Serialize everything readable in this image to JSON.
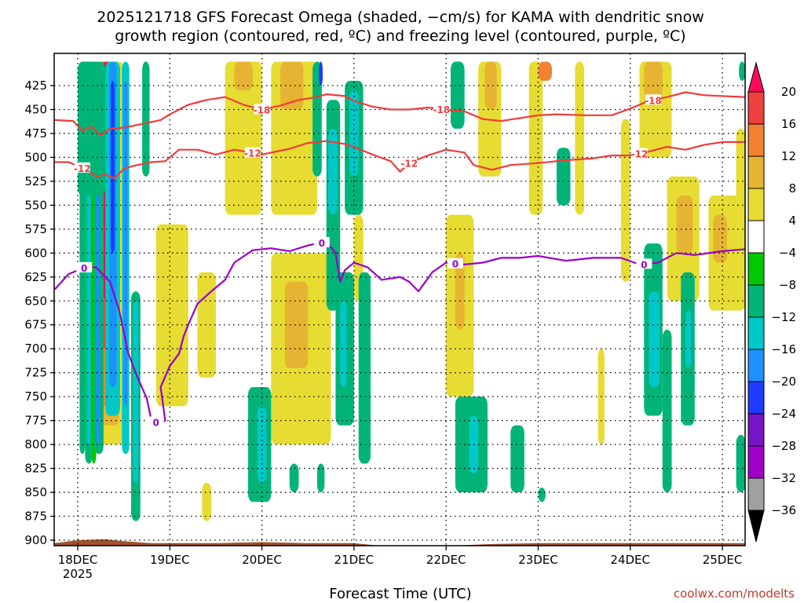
{
  "chart_data": {
    "type": "time-height contour",
    "title_line1": "2025121718 GFS Forecast Omega (shaded, −cm/s) for KAMA with dendritic snow",
    "title_line2": "growth region (contoured, red, ºC) and freezing level (contoured, purple, ºC)",
    "xlabel": "Forecast Time (UTC)",
    "x_ticks": [
      "18DEC",
      "19DEC",
      "20DEC",
      "21DEC",
      "22DEC",
      "23DEC",
      "24DEC",
      "25DEC"
    ],
    "x_year_label": "2025",
    "y_ticks": [
      425,
      450,
      475,
      500,
      525,
      550,
      575,
      600,
      625,
      650,
      675,
      700,
      725,
      750,
      775,
      800,
      825,
      850,
      875,
      900
    ],
    "y_range_hpa": [
      400,
      910
    ],
    "x_range_days": [
      17.75,
      25.25
    ],
    "colorbar_ticks": [
      "20",
      "16",
      "12",
      "8",
      "4",
      "−4",
      "−8",
      "−12",
      "−16",
      "−20",
      "−24",
      "−28",
      "−32",
      "−36"
    ],
    "colorbar_colors": [
      "#ff0a5a",
      "#f04040",
      "#f08232",
      "#e6b432",
      "#e6dc32",
      "#ffffff",
      "#00c800",
      "#00b478",
      "#00c8c8",
      "#1e90ff",
      "#1e3cff",
      "#7814c8",
      "#a000c8",
      "#a0a0a0",
      "#000000"
    ],
    "contour_colors": {
      "snow_growth": "#f03c3c",
      "freezing": "#9b00c8",
      "terrain": "#a0522d"
    },
    "isotherm_minus18": {
      "label": "-18",
      "label_days": [
        20.0,
        21.95,
        24.25
      ],
      "points": [
        [
          17.75,
          461
        ],
        [
          17.95,
          462
        ],
        [
          18.05,
          472
        ],
        [
          18.15,
          468
        ],
        [
          18.25,
          477
        ],
        [
          18.35,
          470
        ],
        [
          18.5,
          469
        ],
        [
          18.7,
          465
        ],
        [
          18.9,
          461
        ],
        [
          19.0,
          455
        ],
        [
          19.2,
          445
        ],
        [
          19.4,
          440
        ],
        [
          19.6,
          437
        ],
        [
          19.8,
          445
        ],
        [
          20.0,
          450
        ],
        [
          20.2,
          446
        ],
        [
          20.4,
          440
        ],
        [
          20.6,
          437
        ],
        [
          20.7,
          434
        ],
        [
          20.9,
          436
        ],
        [
          21.0,
          441
        ],
        [
          21.2,
          447
        ],
        [
          21.4,
          450
        ],
        [
          21.6,
          450
        ],
        [
          21.8,
          448
        ],
        [
          22.0,
          450
        ],
        [
          22.2,
          452
        ],
        [
          22.4,
          460
        ],
        [
          22.6,
          462
        ],
        [
          22.8,
          459
        ],
        [
          23.0,
          456
        ],
        [
          23.2,
          455
        ],
        [
          23.5,
          456
        ],
        [
          23.8,
          456
        ],
        [
          24.0,
          449
        ],
        [
          24.2,
          441
        ],
        [
          24.4,
          437
        ],
        [
          24.6,
          432
        ],
        [
          24.8,
          435
        ],
        [
          25.0,
          436
        ],
        [
          25.25,
          437
        ]
      ]
    },
    "isotherm_minus12": {
      "label": "-12",
      "label_days": [
        18.05,
        19.9,
        21.6,
        24.1
      ],
      "points": [
        [
          17.75,
          505
        ],
        [
          17.9,
          505
        ],
        [
          18.0,
          509
        ],
        [
          18.1,
          513
        ],
        [
          18.2,
          520
        ],
        [
          18.3,
          518
        ],
        [
          18.4,
          522
        ],
        [
          18.5,
          512
        ],
        [
          18.6,
          509
        ],
        [
          18.8,
          505
        ],
        [
          18.95,
          504
        ],
        [
          19.1,
          492
        ],
        [
          19.3,
          492
        ],
        [
          19.5,
          497
        ],
        [
          19.7,
          492
        ],
        [
          20.0,
          497
        ],
        [
          20.3,
          491
        ],
        [
          20.5,
          485
        ],
        [
          20.7,
          483
        ],
        [
          20.9,
          486
        ],
        [
          21.0,
          489
        ],
        [
          21.2,
          497
        ],
        [
          21.4,
          504
        ],
        [
          21.5,
          515
        ],
        [
          21.6,
          506
        ],
        [
          21.8,
          498
        ],
        [
          22.0,
          492
        ],
        [
          22.2,
          495
        ],
        [
          22.3,
          508
        ],
        [
          22.5,
          513
        ],
        [
          22.7,
          508
        ],
        [
          23.0,
          506
        ],
        [
          23.3,
          503
        ],
        [
          23.6,
          501
        ],
        [
          23.8,
          498
        ],
        [
          24.0,
          498
        ],
        [
          24.2,
          494
        ],
        [
          24.4,
          489
        ],
        [
          24.6,
          492
        ],
        [
          24.8,
          487
        ],
        [
          25.0,
          484
        ],
        [
          25.25,
          484
        ]
      ]
    },
    "isotherm_zero": {
      "label": "0",
      "label_days": [
        18.07,
        18.85,
        20.65,
        22.1,
        24.15
      ],
      "points": [
        [
          17.75,
          638
        ],
        [
          17.9,
          622
        ],
        [
          18.0,
          618
        ],
        [
          18.1,
          614
        ],
        [
          18.2,
          615
        ],
        [
          18.35,
          630
        ],
        [
          18.45,
          660
        ],
        [
          18.55,
          705
        ],
        [
          18.65,
          730
        ],
        [
          18.75,
          752
        ],
        [
          18.8,
          775
        ],
        [
          18.9,
          778
        ],
        [
          18.95,
          775
        ],
        [
          18.9,
          740
        ],
        [
          19.0,
          718
        ],
        [
          19.1,
          705
        ],
        [
          19.15,
          687
        ],
        [
          19.2,
          675
        ],
        [
          19.3,
          653
        ],
        [
          19.45,
          640
        ],
        [
          19.6,
          628
        ],
        [
          19.7,
          610
        ],
        [
          19.9,
          597
        ],
        [
          20.1,
          595
        ],
        [
          20.3,
          598
        ],
        [
          20.5,
          592
        ],
        [
          20.6,
          590
        ],
        [
          20.7,
          588
        ],
        [
          20.8,
          600
        ],
        [
          20.85,
          630
        ],
        [
          20.9,
          618
        ],
        [
          21.0,
          610
        ],
        [
          21.15,
          615
        ],
        [
          21.3,
          628
        ],
        [
          21.5,
          625
        ],
        [
          21.6,
          630
        ],
        [
          21.7,
          640
        ],
        [
          21.85,
          620
        ],
        [
          22.0,
          610
        ],
        [
          22.2,
          612
        ],
        [
          22.4,
          610
        ],
        [
          22.6,
          605
        ],
        [
          22.8,
          605
        ],
        [
          23.0,
          603
        ],
        [
          23.3,
          608
        ],
        [
          23.6,
          605
        ],
        [
          23.9,
          605
        ],
        [
          24.1,
          612
        ],
        [
          24.3,
          610
        ],
        [
          24.5,
          600
        ],
        [
          24.7,
          602
        ],
        [
          25.0,
          598
        ],
        [
          25.25,
          596
        ]
      ]
    },
    "omega_regions": [
      {
        "day_start": 18.02,
        "day_end": 18.08,
        "p_top": 400,
        "p_bot": 810,
        "value": -8
      },
      {
        "day_start": 18.08,
        "day_end": 18.16,
        "p_top": 400,
        "p_bot": 820,
        "value": -8
      },
      {
        "day_start": 18.1,
        "day_end": 18.14,
        "p_top": 400,
        "p_bot": 800,
        "value": -12
      },
      {
        "day_start": 18.15,
        "day_end": 18.2,
        "p_top": 400,
        "p_bot": 820,
        "value": -4
      },
      {
        "day_start": 18.18,
        "day_end": 18.28,
        "p_top": 400,
        "p_bot": 810,
        "value": -8
      },
      {
        "day_start": 18.2,
        "day_end": 18.24,
        "p_top": 400,
        "p_bot": 800,
        "value": -16
      },
      {
        "day_start": 18.3,
        "day_end": 18.46,
        "p_top": 400,
        "p_bot": 770,
        "value": -12
      },
      {
        "day_start": 18.34,
        "day_end": 18.42,
        "p_top": 400,
        "p_bot": 740,
        "value": -16
      },
      {
        "day_start": 18.36,
        "day_end": 18.4,
        "p_top": 420,
        "p_bot": 600,
        "value": -20
      },
      {
        "day_start": 18.48,
        "day_end": 18.56,
        "p_top": 400,
        "p_bot": 810,
        "value": -12
      },
      {
        "day_start": 18.5,
        "day_end": 18.54,
        "p_top": 420,
        "p_bot": 760,
        "value": -16
      },
      {
        "day_start": 18.58,
        "day_end": 18.68,
        "p_top": 640,
        "p_bot": 880,
        "value": -8
      },
      {
        "day_start": 18.6,
        "day_end": 18.66,
        "p_top": 650,
        "p_bot": 840,
        "value": -12
      },
      {
        "day_start": 18.0,
        "day_end": 18.3,
        "p_top": 400,
        "p_bot": 540,
        "value": -8
      },
      {
        "day_start": 18.7,
        "day_end": 18.78,
        "p_top": 400,
        "p_bot": 520,
        "value": -8
      },
      {
        "day_start": 20.55,
        "day_end": 20.65,
        "p_top": 400,
        "p_bot": 520,
        "value": -8
      },
      {
        "day_start": 20.62,
        "day_end": 20.66,
        "p_top": 400,
        "p_bot": 425,
        "value": -20
      },
      {
        "day_start": 20.7,
        "day_end": 20.85,
        "p_top": 440,
        "p_bot": 660,
        "value": -8
      },
      {
        "day_start": 20.72,
        "day_end": 20.82,
        "p_top": 470,
        "p_bot": 560,
        "value": -12
      },
      {
        "day_start": 20.9,
        "day_end": 21.1,
        "p_top": 420,
        "p_bot": 560,
        "value": -8
      },
      {
        "day_start": 20.95,
        "day_end": 21.05,
        "p_top": 430,
        "p_bot": 520,
        "value": -12
      },
      {
        "day_start": 20.8,
        "day_end": 21.0,
        "p_top": 620,
        "p_bot": 780,
        "value": -8
      },
      {
        "day_start": 20.85,
        "day_end": 20.92,
        "p_top": 650,
        "p_bot": 740,
        "value": -12
      },
      {
        "day_start": 21.05,
        "day_end": 21.18,
        "p_top": 620,
        "p_bot": 820,
        "value": -8
      },
      {
        "day_start": 19.85,
        "day_end": 20.1,
        "p_top": 740,
        "p_bot": 860,
        "value": -8
      },
      {
        "day_start": 19.95,
        "day_end": 20.05,
        "p_top": 760,
        "p_bot": 840,
        "value": -12
      },
      {
        "day_start": 20.3,
        "day_end": 20.4,
        "p_top": 820,
        "p_bot": 850,
        "value": -8
      },
      {
        "day_start": 20.6,
        "day_end": 20.68,
        "p_top": 820,
        "p_bot": 850,
        "value": -8
      },
      {
        "day_start": 22.1,
        "day_end": 22.45,
        "p_top": 750,
        "p_bot": 850,
        "value": -8
      },
      {
        "day_start": 22.25,
        "day_end": 22.35,
        "p_top": 770,
        "p_bot": 830,
        "value": -12
      },
      {
        "day_start": 22.7,
        "day_end": 22.85,
        "p_top": 780,
        "p_bot": 850,
        "value": -8
      },
      {
        "day_start": 23.0,
        "day_end": 23.08,
        "p_top": 845,
        "p_bot": 860,
        "value": -8
      },
      {
        "day_start": 22.05,
        "day_end": 22.2,
        "p_top": 400,
        "p_bot": 470,
        "value": -8
      },
      {
        "day_start": 23.2,
        "day_end": 23.35,
        "p_top": 490,
        "p_bot": 550,
        "value": -8
      },
      {
        "day_start": 24.15,
        "day_end": 24.35,
        "p_top": 590,
        "p_bot": 770,
        "value": -8
      },
      {
        "day_start": 24.2,
        "day_end": 24.32,
        "p_top": 640,
        "p_bot": 740,
        "value": -12
      },
      {
        "day_start": 24.55,
        "day_end": 24.7,
        "p_top": 620,
        "p_bot": 780,
        "value": -8
      },
      {
        "day_start": 24.6,
        "day_end": 24.66,
        "p_top": 660,
        "p_bot": 720,
        "value": -12
      },
      {
        "day_start": 24.35,
        "day_end": 24.45,
        "p_top": 680,
        "p_bot": 850,
        "value": -8
      },
      {
        "day_start": 25.15,
        "day_end": 25.25,
        "p_top": 790,
        "p_bot": 850,
        "value": -8
      },
      {
        "day_start": 25.18,
        "day_end": 25.25,
        "p_top": 400,
        "p_bot": 420,
        "value": -8
      }
    ],
    "omega_positive_regions": [
      {
        "day_start": 18.1,
        "day_end": 18.5,
        "p_top": 400,
        "p_bot": 800,
        "value": 4
      },
      {
        "day_start": 18.15,
        "day_end": 18.45,
        "p_top": 400,
        "p_bot": 780,
        "value": 8
      },
      {
        "day_start": 18.2,
        "day_end": 18.42,
        "p_top": 400,
        "p_bot": 760,
        "value": 12
      },
      {
        "day_start": 18.25,
        "day_end": 18.38,
        "p_top": 400,
        "p_bot": 700,
        "value": 16
      },
      {
        "day_start": 18.28,
        "day_end": 18.34,
        "p_top": 400,
        "p_bot": 650,
        "value": 20
      },
      {
        "day_start": 18.85,
        "day_end": 19.2,
        "p_top": 570,
        "p_bot": 760,
        "value": 4
      },
      {
        "day_start": 19.3,
        "day_end": 19.5,
        "p_top": 620,
        "p_bot": 730,
        "value": 4
      },
      {
        "day_start": 19.35,
        "day_end": 19.45,
        "p_top": 840,
        "p_bot": 880,
        "value": 4
      },
      {
        "day_start": 19.6,
        "day_end": 20.0,
        "p_top": 400,
        "p_bot": 560,
        "value": 4
      },
      {
        "day_start": 19.7,
        "day_end": 19.9,
        "p_top": 400,
        "p_bot": 430,
        "value": 8
      },
      {
        "day_start": 20.1,
        "day_end": 20.6,
        "p_top": 400,
        "p_bot": 560,
        "value": 4
      },
      {
        "day_start": 20.2,
        "day_end": 20.45,
        "p_top": 400,
        "p_bot": 450,
        "value": 8
      },
      {
        "day_start": 20.1,
        "day_end": 20.75,
        "p_top": 600,
        "p_bot": 800,
        "value": 4
      },
      {
        "day_start": 20.25,
        "day_end": 20.5,
        "p_top": 630,
        "p_bot": 720,
        "value": 8
      },
      {
        "day_start": 21.0,
        "day_end": 21.1,
        "p_top": 560,
        "p_bot": 650,
        "value": 4
      },
      {
        "day_start": 22.0,
        "day_end": 22.3,
        "p_top": 560,
        "p_bot": 750,
        "value": 4
      },
      {
        "day_start": 22.1,
        "day_end": 22.2,
        "p_top": 600,
        "p_bot": 680,
        "value": 8
      },
      {
        "day_start": 22.35,
        "day_end": 22.6,
        "p_top": 400,
        "p_bot": 520,
        "value": 4
      },
      {
        "day_start": 22.42,
        "day_end": 22.55,
        "p_top": 400,
        "p_bot": 450,
        "value": 8
      },
      {
        "day_start": 22.9,
        "day_end": 23.05,
        "p_top": 400,
        "p_bot": 560,
        "value": 4
      },
      {
        "day_start": 23.4,
        "day_end": 23.5,
        "p_top": 400,
        "p_bot": 560,
        "value": 4
      },
      {
        "day_start": 23.65,
        "day_end": 23.72,
        "p_top": 700,
        "p_bot": 800,
        "value": 4
      },
      {
        "day_start": 23.9,
        "day_end": 24.0,
        "p_top": 460,
        "p_bot": 630,
        "value": 4
      },
      {
        "day_start": 24.1,
        "day_end": 24.45,
        "p_top": 400,
        "p_bot": 500,
        "value": 4
      },
      {
        "day_start": 24.15,
        "day_end": 24.35,
        "p_top": 400,
        "p_bot": 440,
        "value": 8
      },
      {
        "day_start": 24.4,
        "day_end": 24.75,
        "p_top": 520,
        "p_bot": 650,
        "value": 4
      },
      {
        "day_start": 24.5,
        "day_end": 24.68,
        "p_top": 540,
        "p_bot": 600,
        "value": 8
      },
      {
        "day_start": 24.85,
        "day_end": 25.25,
        "p_top": 540,
        "p_bot": 660,
        "value": 4
      },
      {
        "day_start": 24.9,
        "day_end": 25.05,
        "p_top": 560,
        "p_bot": 610,
        "value": 8
      },
      {
        "day_start": 25.15,
        "day_end": 25.25,
        "p_top": 470,
        "p_bot": 560,
        "value": 4
      },
      {
        "day_start": 23.0,
        "day_end": 23.15,
        "p_top": 400,
        "p_bot": 420,
        "value": 12
      }
    ],
    "terrain_surface": [
      [
        17.75,
        903
      ],
      [
        18.0,
        900
      ],
      [
        18.3,
        899
      ],
      [
        18.5,
        901
      ],
      [
        18.8,
        903
      ],
      [
        19.5,
        903
      ],
      [
        20.0,
        902
      ],
      [
        20.5,
        903
      ],
      [
        21.0,
        903
      ],
      [
        21.3,
        906
      ],
      [
        21.7,
        907
      ],
      [
        22.0,
        906
      ],
      [
        22.5,
        904
      ],
      [
        23.0,
        903
      ],
      [
        24.0,
        903
      ],
      [
        25.0,
        903
      ],
      [
        25.25,
        903
      ]
    ]
  },
  "credit": "coolwx.com/modelts"
}
